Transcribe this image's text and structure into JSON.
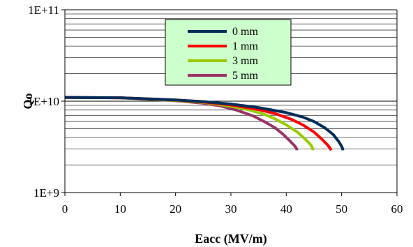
{
  "chart_data": {
    "type": "line",
    "xlabel": "Eacc (MV/m)",
    "ylabel": "Qo",
    "xlim": [
      0,
      60
    ],
    "ylim": [
      1000000000,
      100000000000
    ],
    "y_scale": "log",
    "grid": true,
    "legend_placement": "top-center",
    "x_ticks": [
      0,
      10,
      20,
      30,
      40,
      50,
      60
    ],
    "x_tick_labels": [
      "0",
      "10",
      "20",
      "30",
      "40",
      "50",
      "60"
    ],
    "y_ticks": [
      1000000000,
      10000000000,
      100000000000
    ],
    "y_tick_labels": [
      "1E+9",
      "1E+10",
      "1E+11"
    ],
    "legend_background": "#ccffcc",
    "series": [
      {
        "name": "0 mm",
        "color": "#002d5a",
        "x": [
          0,
          10,
          20,
          25,
          30,
          35,
          40,
          43,
          45,
          47,
          48.5,
          49.5,
          50,
          50.2,
          50.2
        ],
        "y": [
          11000000000,
          10900000000,
          10300000000,
          9900000000,
          9300000000,
          8500000000,
          7500000000,
          6700000000,
          6000000000,
          5100000000,
          4300000000,
          3600000000,
          3200000000,
          3000000000,
          2900000000
        ]
      },
      {
        "name": "1 mm",
        "color": "#ff0000",
        "x": [
          0,
          10,
          20,
          25,
          30,
          35,
          38,
          41,
          43,
          45,
          46.5,
          47.5,
          48,
          48.1
        ],
        "y": [
          11000000000,
          10900000000,
          10300000000,
          9800000000,
          9100000000,
          8100000000,
          7300000000,
          6300000000,
          5500000000,
          4600000000,
          3800000000,
          3300000000,
          3000000000,
          2900000000
        ]
      },
      {
        "name": "3 mm",
        "color": "#99cc00",
        "x": [
          0,
          10,
          20,
          25,
          30,
          33,
          36,
          38,
          40,
          42,
          43.5,
          44.5,
          44.8,
          44.8
        ],
        "y": [
          11000000000,
          10900000000,
          10200000000,
          9700000000,
          8800000000,
          8100000000,
          7200000000,
          6400000000,
          5500000000,
          4600000000,
          3800000000,
          3300000000,
          3000000000,
          2900000000
        ]
      },
      {
        "name": "5 mm",
        "color": "#993366",
        "x": [
          0,
          10,
          20,
          25,
          28,
          31,
          34,
          36,
          38,
          39.5,
          40.8,
          41.6,
          41.9,
          41.9
        ],
        "y": [
          11000000000,
          10900000000,
          10100000000,
          9500000000,
          8900000000,
          8000000000,
          6900000000,
          6000000000,
          5100000000,
          4300000000,
          3600000000,
          3200000000,
          3000000000,
          2900000000
        ]
      }
    ]
  }
}
